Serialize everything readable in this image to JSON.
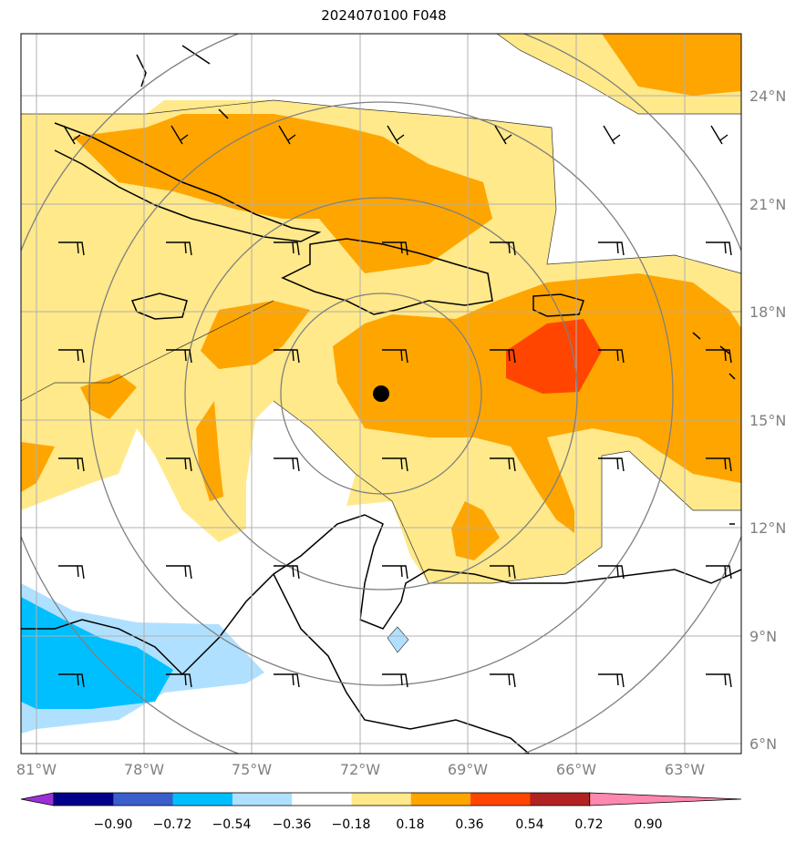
{
  "title": "2024070100 F048",
  "map": {
    "lon_labels": [
      "81°W",
      "78°W",
      "75°W",
      "72°W",
      "69°W",
      "66°W",
      "63°W"
    ],
    "lat_labels": [
      "24°N",
      "21°N",
      "18°N",
      "15°N",
      "12°N",
      "9°N",
      "6°N"
    ],
    "center_marker": {
      "lon": -71.5,
      "lat": 15.7
    }
  },
  "colorbar": {
    "ticks": [
      "−0.90",
      "−0.72",
      "−0.54",
      "−0.36",
      "−0.18",
      "0.18",
      "0.36",
      "0.54",
      "0.72",
      "0.90"
    ],
    "colors": [
      "#9b30d8",
      "#00008b",
      "#3a5fcd",
      "#00bfff",
      "#b0e0ff",
      "#ffffff",
      "#ffe98a",
      "#ffa500",
      "#ff4500",
      "#b22222",
      "#ff88b0"
    ]
  }
}
